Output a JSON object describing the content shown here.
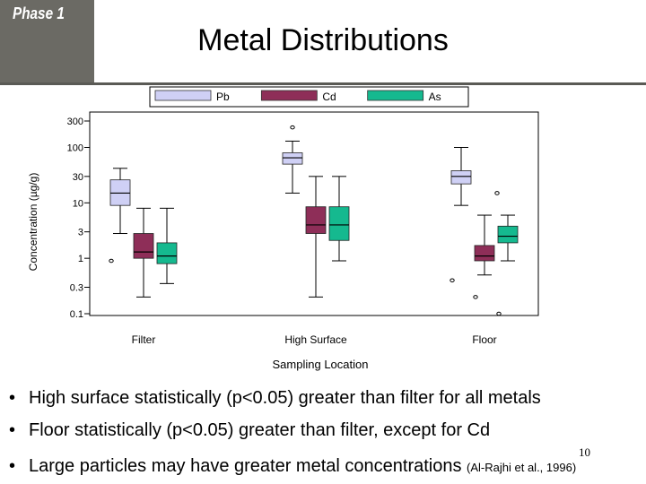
{
  "header": {
    "phase_label": "Phase 1",
    "title": "Metal Distributions"
  },
  "colors": {
    "Pb": "#cfd0f5",
    "Cd": "#8e2e58",
    "As": "#15b98f",
    "header_band": "#6b6a64"
  },
  "chart_data": {
    "type": "box",
    "y_scale": "log",
    "ylim": [
      0.1,
      300
    ],
    "ylabel": "Concentration (µg/g)",
    "xlabel": "Sampling Location",
    "y_ticks": [
      "0.1",
      "0.3",
      "1",
      "3",
      "10",
      "30",
      "100",
      "300"
    ],
    "y_tick_values": [
      0.1,
      0.3,
      1,
      3,
      10,
      30,
      100,
      300
    ],
    "categories": [
      "Filter",
      "High Surface",
      "Floor"
    ],
    "legend": [
      "Pb",
      "Cd",
      "As"
    ],
    "legend_position": "top",
    "series": [
      {
        "name": "Pb",
        "color": "#cfd0f5",
        "boxes": [
          {
            "min": 2.8,
            "q1": 9,
            "median": 15,
            "q3": 26,
            "max": 42,
            "outliers": [
              0.9
            ]
          },
          {
            "min": 15,
            "q1": 50,
            "median": 65,
            "q3": 80,
            "max": 130,
            "outliers": [
              230
            ]
          },
          {
            "min": 9,
            "q1": 22,
            "median": 30,
            "q3": 38,
            "max": 100,
            "outliers": [
              15,
              0.4
            ]
          }
        ]
      },
      {
        "name": "Cd",
        "color": "#8e2e58",
        "boxes": [
          {
            "min": 0.2,
            "q1": 1,
            "median": 1.3,
            "q3": 2.8,
            "max": 8,
            "outliers": []
          },
          {
            "min": 0.2,
            "q1": 2.8,
            "median": 4,
            "q3": 8.5,
            "max": 30,
            "outliers": []
          },
          {
            "min": 0.5,
            "q1": 0.9,
            "median": 1.1,
            "q3": 1.7,
            "max": 6,
            "outliers": [
              0.2
            ]
          }
        ]
      },
      {
        "name": "As",
        "color": "#15b98f",
        "boxes": [
          {
            "min": 0.35,
            "q1": 0.8,
            "median": 1.1,
            "q3": 1.9,
            "max": 8,
            "outliers": []
          },
          {
            "min": 0.9,
            "q1": 2.1,
            "median": 4,
            "q3": 8.5,
            "max": 30,
            "outliers": []
          },
          {
            "min": 0.9,
            "q1": 1.9,
            "median": 2.5,
            "q3": 3.8,
            "max": 6,
            "outliers": [
              0.1
            ]
          }
        ]
      }
    ]
  },
  "bullets": [
    {
      "text": "High surface statistically (p<0.05) greater than filter for all metals"
    },
    {
      "text": "Floor statistically (p<0.05) greater than filter, except for Cd"
    },
    {
      "text": "Large particles may have greater metal concentrations",
      "citation": "(Al-Rajhi et al., 1996)"
    }
  ],
  "page_number": "10"
}
